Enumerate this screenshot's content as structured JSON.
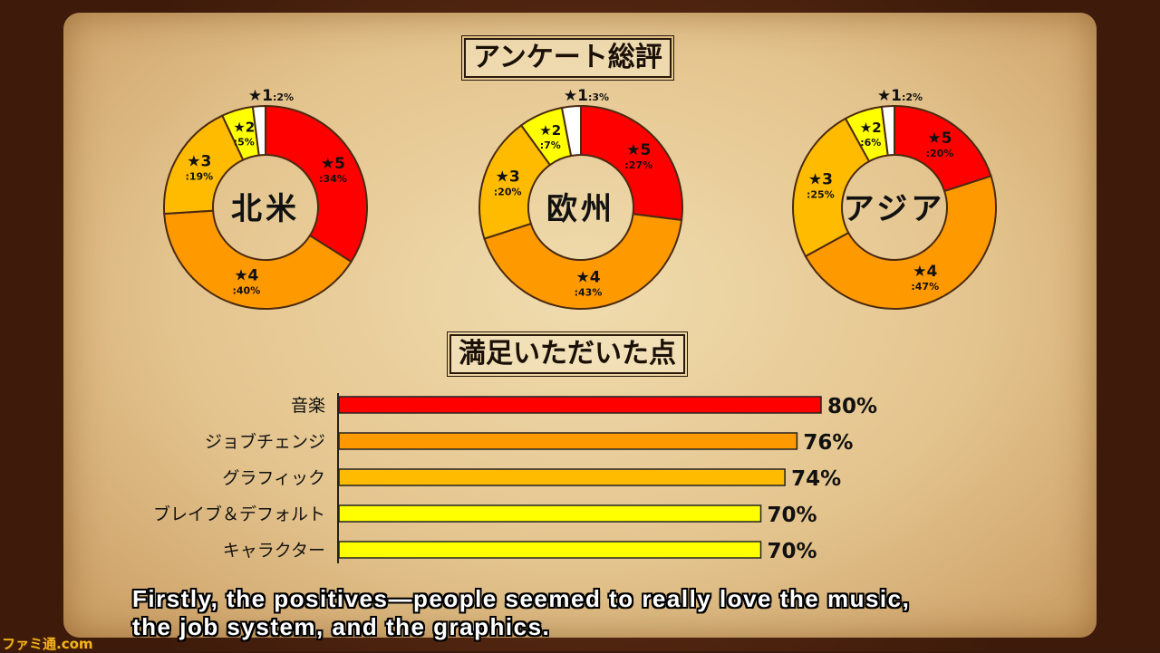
{
  "title_survey": "アンケート総評",
  "title_satisfied": "満足いただいた点",
  "caption_lines": [
    "Firstly, the positives—people seemed to really love the music,",
    "the job system, and the graphics."
  ],
  "logo": "ファミ通.com",
  "chart_data": [
    {
      "type": "pie",
      "donut": true,
      "title": "北米",
      "categories": [
        "★5",
        "★4",
        "★3",
        "★2",
        "★1"
      ],
      "values": [
        34,
        40,
        19,
        5,
        2
      ],
      "labels": [
        ":34%",
        ":40%",
        ":19%",
        ":5%",
        ":2%"
      ]
    },
    {
      "type": "pie",
      "donut": true,
      "title": "欧州",
      "categories": [
        "★5",
        "★4",
        "★3",
        "★2",
        "★1"
      ],
      "values": [
        27,
        43,
        20,
        7,
        3
      ],
      "labels": [
        ":27%",
        ":43%",
        ":20%",
        ":7%",
        ":3%"
      ]
    },
    {
      "type": "pie",
      "donut": true,
      "title": "アジア",
      "categories": [
        "★5",
        "★4",
        "★3",
        "★2",
        "★1"
      ],
      "values": [
        20,
        47,
        25,
        6,
        2
      ],
      "labels": [
        ":20%",
        ":47%",
        ":25%",
        ":6%",
        ":2%"
      ]
    },
    {
      "type": "bar",
      "orientation": "horizontal",
      "categories": [
        "音楽",
        "ジョブチェンジ",
        "グラフィック",
        "ブレイブ＆デフォルト",
        "キャラクター"
      ],
      "values": [
        80,
        76,
        74,
        70,
        70
      ],
      "labels": [
        "80%",
        "76%",
        "74%",
        "70%",
        "70%"
      ],
      "colors": [
        "#ff0000",
        "#ff9900",
        "#ffbb00",
        "#ffff00",
        "#ffff00"
      ]
    }
  ],
  "slice_colors": [
    "#ff0000",
    "#ff9900",
    "#ffbb00",
    "#ffff00",
    "#ffffff"
  ]
}
